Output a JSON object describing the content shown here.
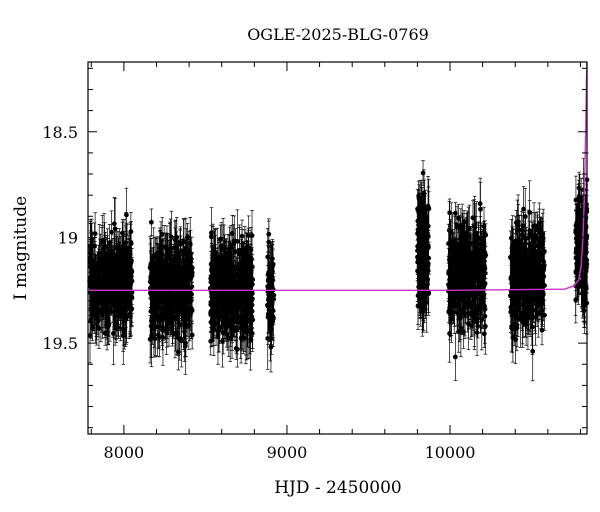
{
  "chart_data": {
    "type": "scatter",
    "title": "OGLE-2025-BLG-0769",
    "xlabel": "HJD - 2450000",
    "ylabel": "I magnitude",
    "xlim": [
      7780,
      10840
    ],
    "ylim": [
      19.93,
      18.17
    ],
    "y_inverted": true,
    "grid": false,
    "legend": "none",
    "x_ticks": [
      8000,
      9000,
      10000
    ],
    "x_tick_labels": [
      "8000",
      "9000",
      "10000"
    ],
    "y_ticks": [
      18.5,
      19,
      19.5
    ],
    "y_tick_labels": [
      "18.5",
      "19",
      "19.5"
    ],
    "colors": {
      "points": "#000000",
      "model": "#cc33cc"
    },
    "seasons": [
      {
        "start": 7790,
        "end": 8050,
        "mean": 19.22,
        "spread": 0.2,
        "n": 420
      },
      {
        "start": 8160,
        "end": 8420,
        "mean": 19.24,
        "spread": 0.2,
        "n": 420
      },
      {
        "start": 8530,
        "end": 8790,
        "mean": 19.25,
        "spread": 0.2,
        "n": 420
      },
      {
        "start": 8880,
        "end": 8920,
        "mean": 19.28,
        "spread": 0.18,
        "n": 70
      },
      {
        "start": 9800,
        "end": 9870,
        "mean": 19.08,
        "spread": 0.25,
        "n": 160
      },
      {
        "start": 9990,
        "end": 10220,
        "mean": 19.18,
        "spread": 0.22,
        "n": 380
      },
      {
        "start": 10370,
        "end": 10580,
        "mean": 19.18,
        "spread": 0.22,
        "n": 360
      },
      {
        "start": 10770,
        "end": 10840,
        "mean": 19.05,
        "spread": 0.25,
        "n": 150
      }
    ],
    "model": {
      "baseline_mag": 19.25,
      "points": [
        [
          7780,
          19.25
        ],
        [
          9000,
          19.25
        ],
        [
          10000,
          19.25
        ],
        [
          10700,
          19.245
        ],
        [
          10760,
          19.23
        ],
        [
          10790,
          19.2
        ],
        [
          10805,
          19.13
        ],
        [
          10815,
          19.0
        ],
        [
          10822,
          18.85
        ],
        [
          10828,
          18.65
        ],
        [
          10833,
          18.45
        ],
        [
          10837,
          18.25
        ],
        [
          10840,
          18.17
        ]
      ]
    }
  }
}
